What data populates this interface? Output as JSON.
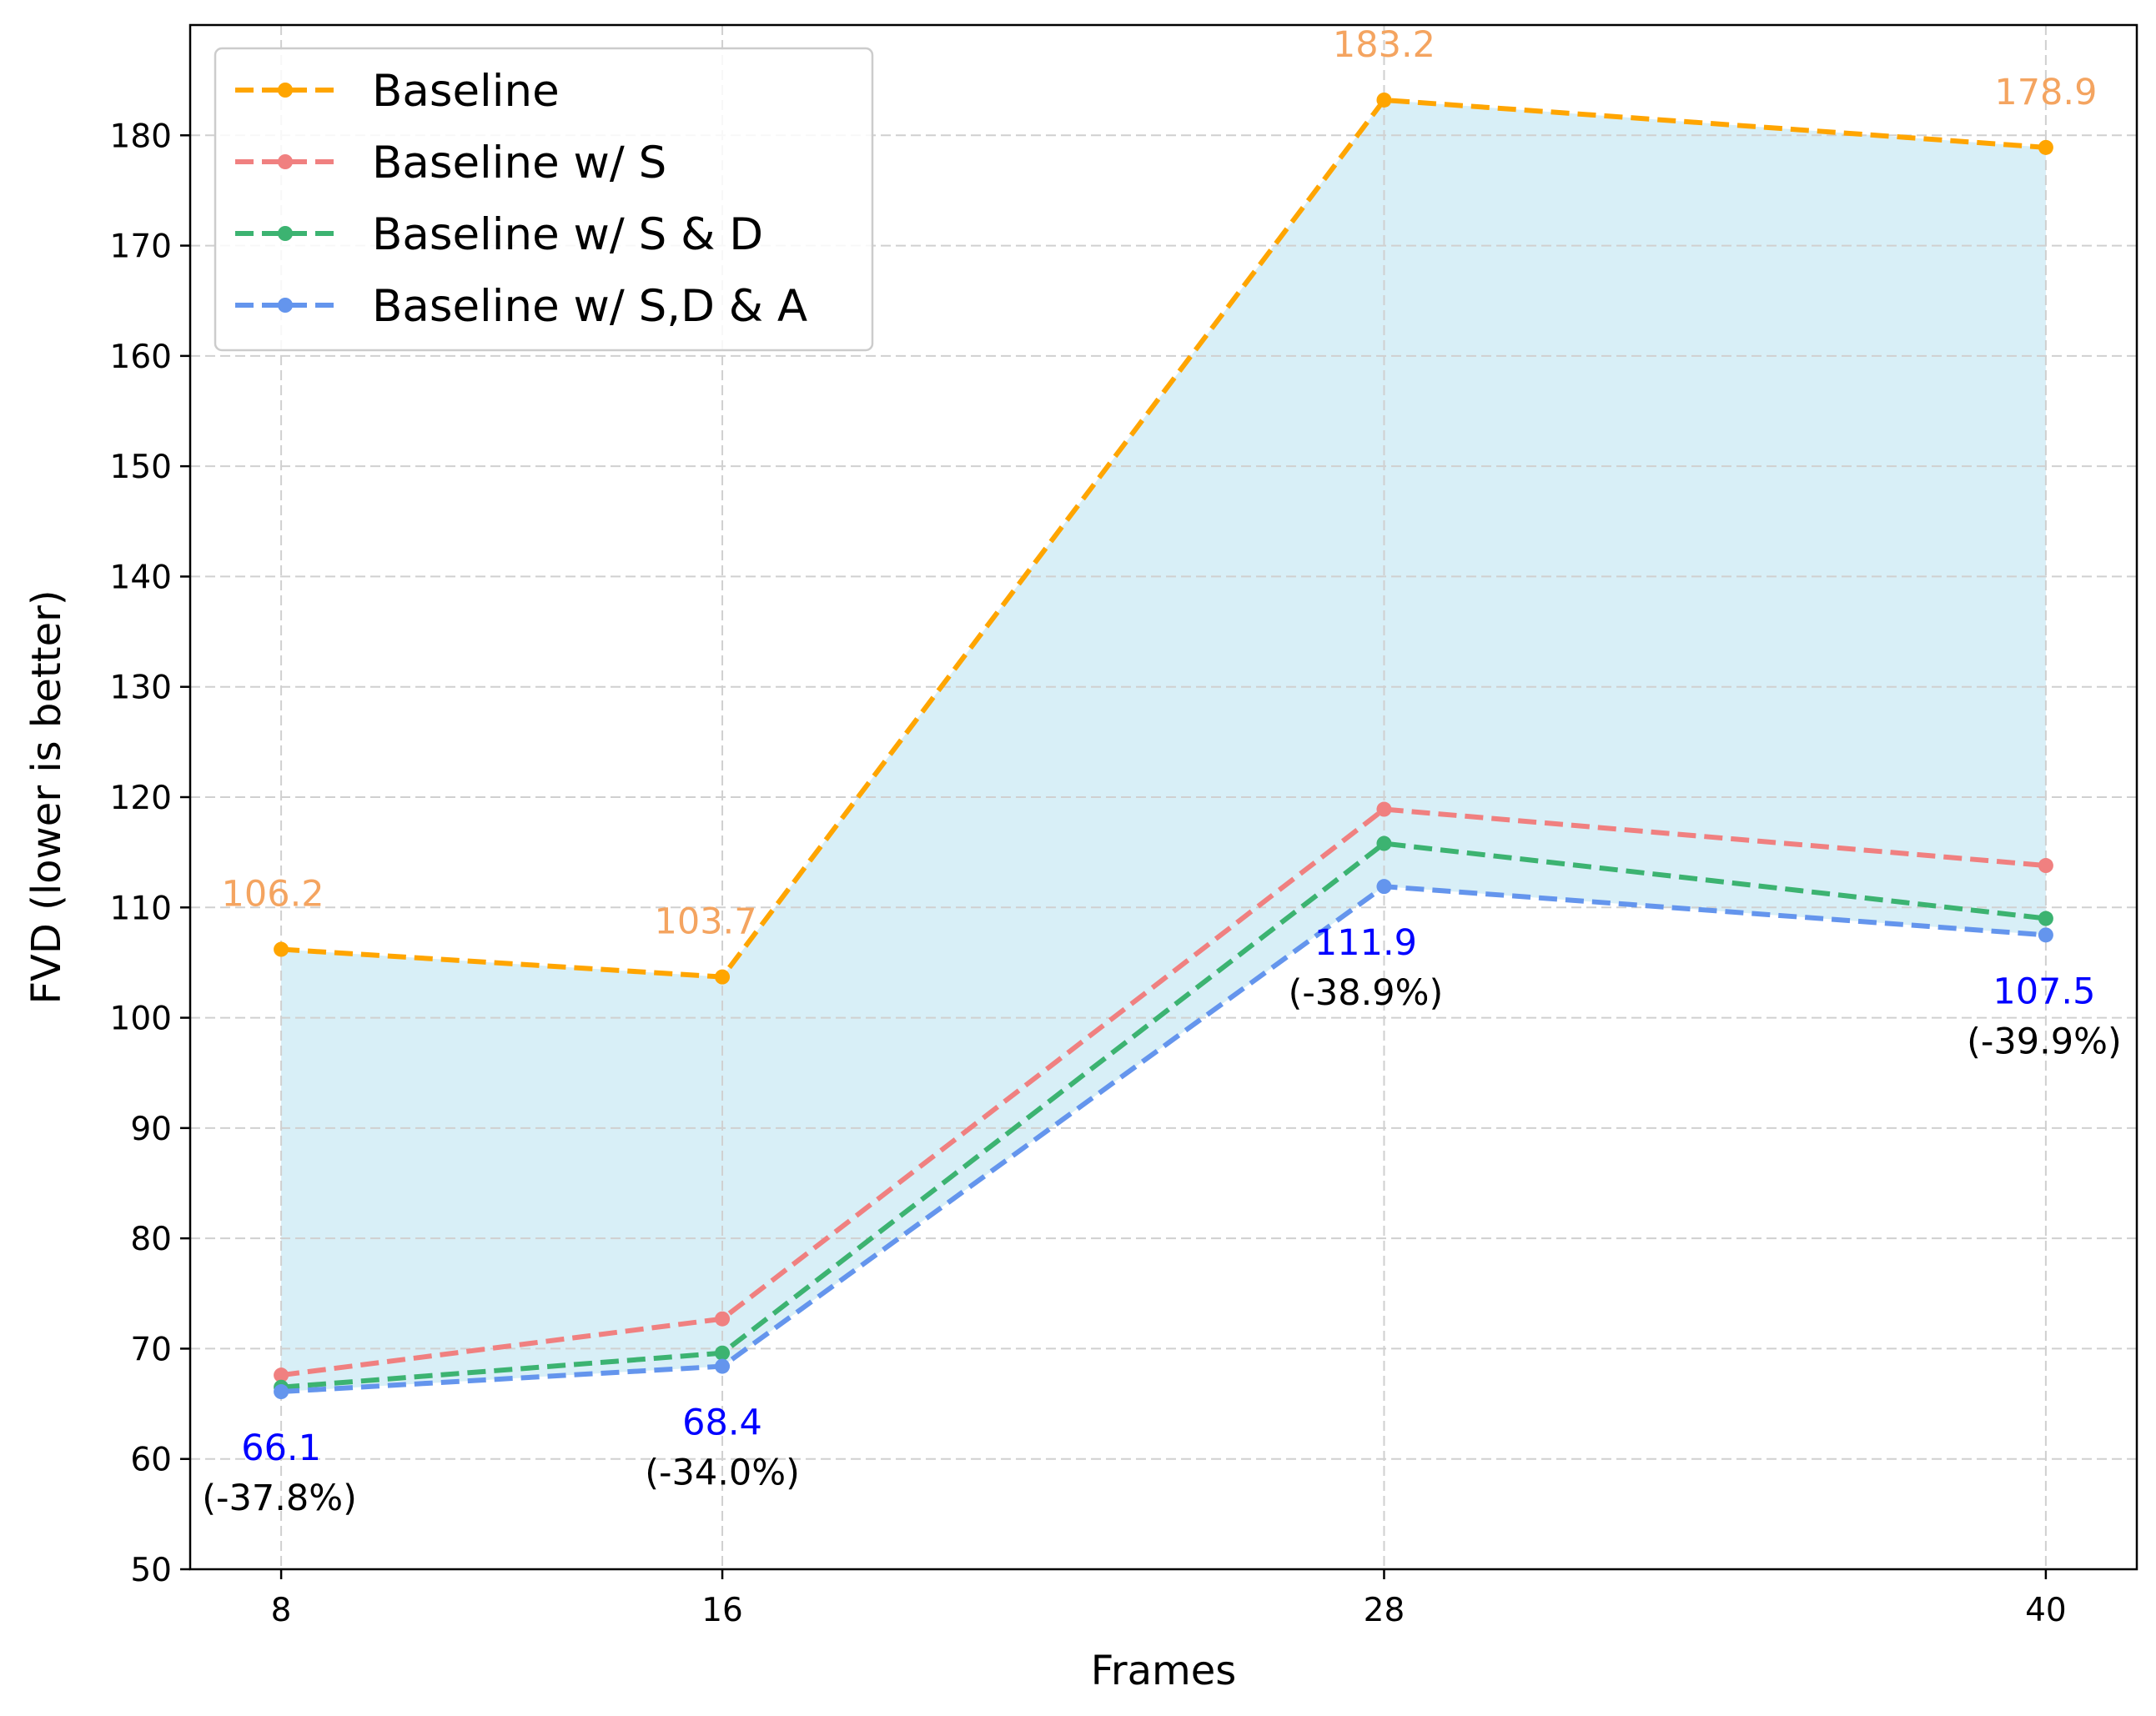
{
  "chart_data": {
    "type": "line",
    "title": "",
    "xlabel": "Frames",
    "ylabel": "FVD (lower is better)",
    "x": [
      8,
      16,
      28,
      40
    ],
    "x_tick_labels": [
      "8",
      "16",
      "28",
      "40"
    ],
    "xlim": [
      6.35,
      41.65
    ],
    "ylim": [
      50,
      190
    ],
    "y_ticks": [
      50,
      60,
      70,
      80,
      90,
      100,
      110,
      120,
      130,
      140,
      150,
      160,
      170,
      180
    ],
    "grid": true,
    "legend_position": "top-left",
    "fill_between": {
      "upper": "Baseline",
      "lower": "Baseline w/ S,D & A",
      "color": "#d8eff7"
    },
    "series": [
      {
        "name": "Baseline",
        "values": [
          106.2,
          103.7,
          183.2,
          178.9
        ],
        "color": "#ffa500",
        "style": "dashed"
      },
      {
        "name": "Baseline w/ S",
        "values": [
          67.6,
          72.7,
          118.9,
          113.8
        ],
        "color": "#f08080",
        "style": "dashed"
      },
      {
        "name": "Baseline w/ S & D",
        "values": [
          66.5,
          69.6,
          115.8,
          109.0
        ],
        "color": "#3cb371",
        "style": "dashed"
      },
      {
        "name": "Baseline w/ S,D & A",
        "values": [
          66.1,
          68.4,
          111.9,
          107.5
        ],
        "color": "#6495ed",
        "style": "dashed"
      }
    ],
    "annotations": {
      "baseline_value_labels": [
        "106.2",
        "103.7",
        "183.2",
        "178.9"
      ],
      "baseline_color": "#f4a460",
      "best_value_labels": [
        "66.1",
        "68.4",
        "111.9",
        "107.5"
      ],
      "best_color": "#0000ff",
      "improvement_labels": [
        "(-37.8%)",
        "(-34.0%)",
        "(-38.9%)",
        "(-39.9%)"
      ],
      "improvement_color": "#000000"
    }
  }
}
